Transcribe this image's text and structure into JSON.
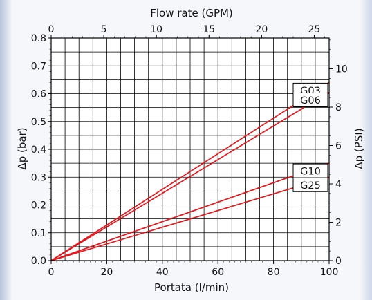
{
  "chart_data": {
    "type": "line",
    "title": "",
    "xlabel": "Portata (l/min)",
    "x2label": "Flow rate (GPM)",
    "ylabel": "Δp (bar)",
    "y2label": "Δp (PSI)",
    "xlim": [
      0,
      100
    ],
    "ylim": [
      0,
      0.8
    ],
    "x_ticks": [
      "0",
      "20",
      "40",
      "60",
      "80",
      "100"
    ],
    "y_ticks": [
      "0.0",
      "0.1",
      "0.2",
      "0.3",
      "0.4",
      "0.5",
      "0.6",
      "0.7",
      "0.8"
    ],
    "x2_ticks": [
      {
        "value": 0,
        "label": "0"
      },
      {
        "value": 5,
        "label": "5"
      },
      {
        "value": 10,
        "label": "10"
      },
      {
        "value": 15,
        "label": "15"
      },
      {
        "value": 20,
        "label": "20"
      },
      {
        "value": 25,
        "label": "25"
      }
    ],
    "y2_ticks": [
      {
        "value": 0,
        "label": "0"
      },
      {
        "value": 2,
        "label": "2"
      },
      {
        "value": 4,
        "label": "4"
      },
      {
        "value": 6,
        "label": "6"
      },
      {
        "value": 8,
        "label": "8"
      },
      {
        "value": 10,
        "label": "10"
      }
    ],
    "grid": true,
    "line_color": "#e8141a",
    "series": [
      {
        "name": "G03",
        "x": [
          0,
          100
        ],
        "y": [
          0,
          0.64
        ]
      },
      {
        "name": "G06",
        "x": [
          0,
          100
        ],
        "y": [
          0,
          0.605
        ]
      },
      {
        "name": "G10",
        "x": [
          0,
          100
        ],
        "y": [
          0,
          0.35
        ]
      },
      {
        "name": "G25",
        "x": [
          0,
          100
        ],
        "y": [
          0,
          0.3
        ]
      }
    ]
  }
}
